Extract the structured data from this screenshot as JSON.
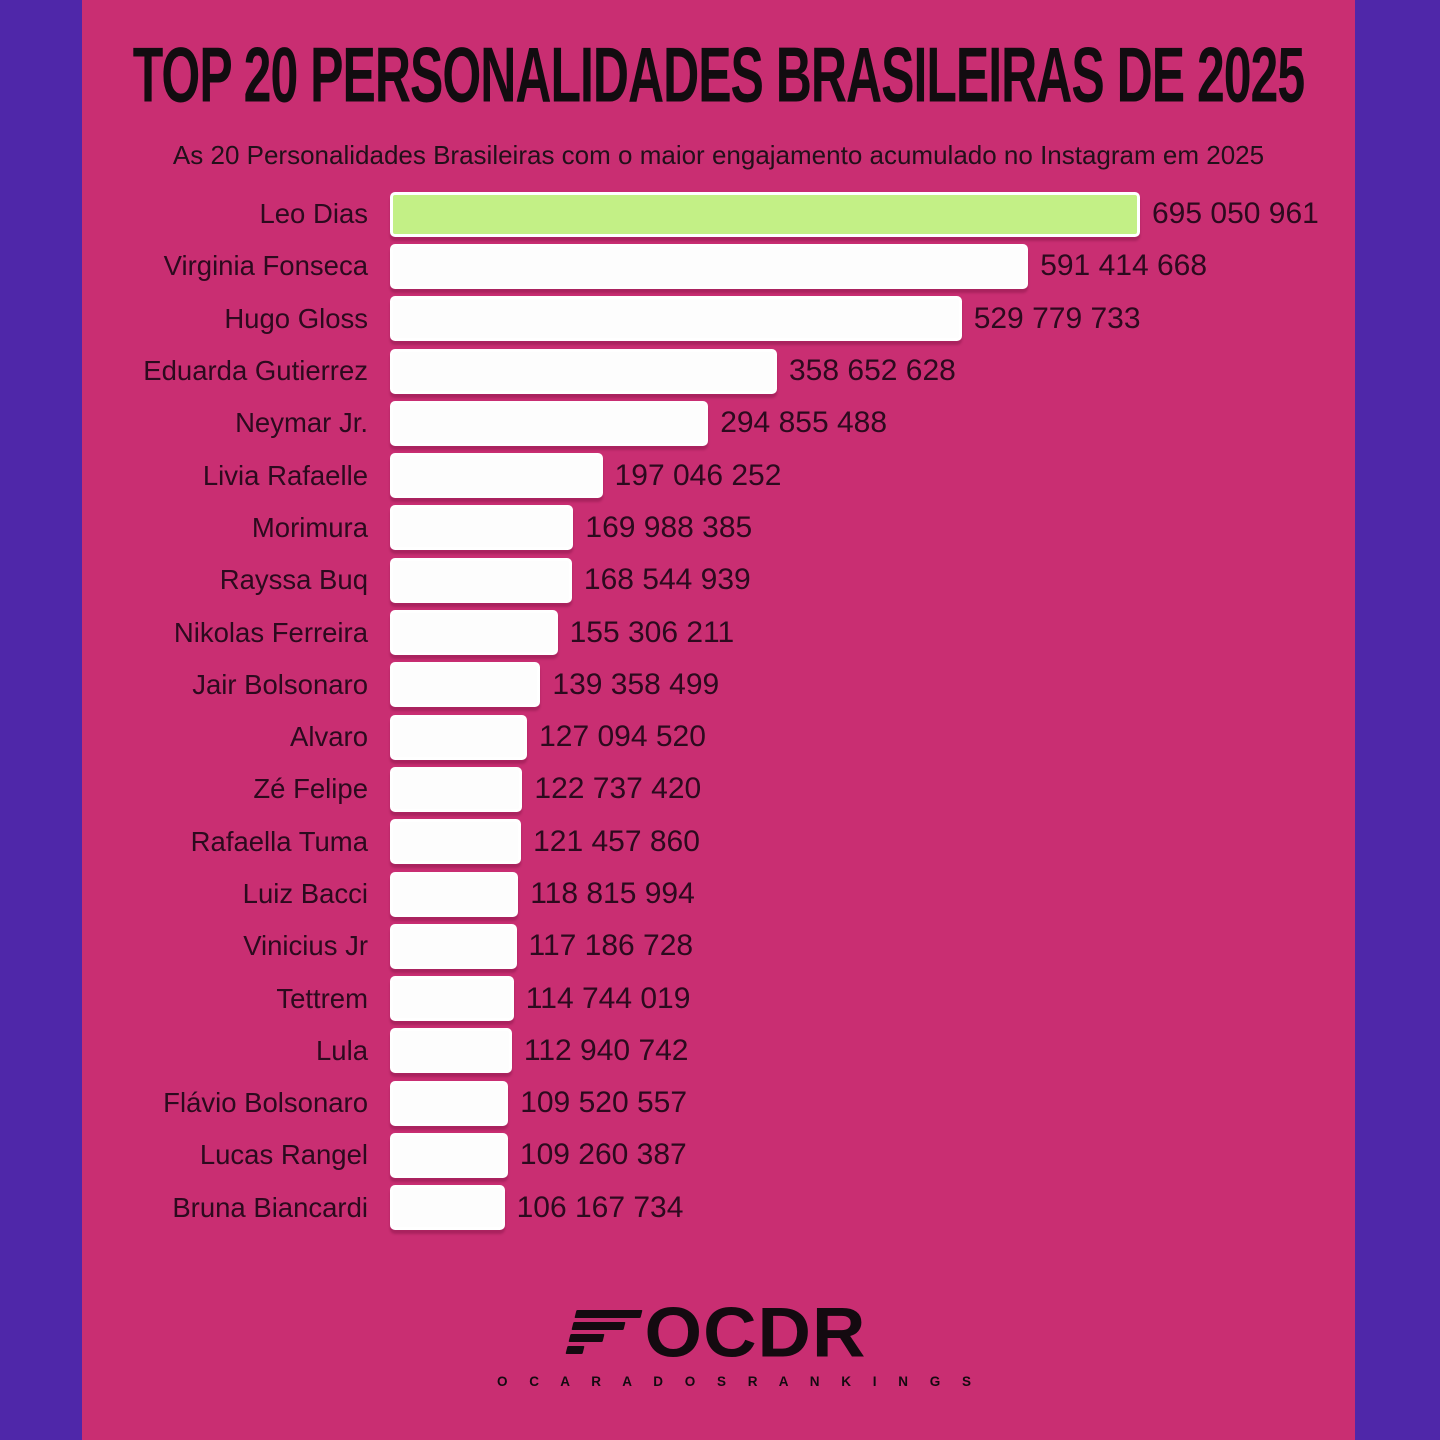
{
  "header": {
    "title": "TOP 20 PERSONALIDADES BRASILEIRAS DE 2025",
    "subtitle": "As 20 Personalidades Brasileiras com o maior engajamento acumulado no Instagram em 2025"
  },
  "chart_data": {
    "type": "bar",
    "orientation": "horizontal",
    "title": "TOP 20 PERSONALIDADES BRASILEIRAS DE 2025",
    "subtitle": "As 20 Personalidades Brasileiras com o maior engajamento acumulado no Instagram em 2025",
    "categories": [
      "Leo Dias",
      "Virginia Fonseca",
      "Hugo Gloss",
      "Eduarda Gutierrez",
      "Neymar Jr.",
      "Livia Rafaelle",
      "Morimura",
      "Rayssa Buq",
      "Nikolas Ferreira",
      "Jair Bolsonaro",
      "Alvaro",
      "Zé Felipe",
      "Rafaella Tuma",
      "Luiz Bacci",
      "Vinicius Jr",
      "Tettrem",
      "Lula",
      "Flávio Bolsonaro",
      "Lucas Rangel",
      "Bruna Biancardi"
    ],
    "values": [
      695050961,
      591414668,
      529779733,
      358652628,
      294855488,
      197046252,
      169988385,
      168544939,
      155306211,
      139358499,
      127094520,
      122737420,
      121457860,
      118815994,
      117186728,
      114744019,
      112940742,
      109520557,
      109260387,
      106167734
    ],
    "value_labels": [
      "695 050 961",
      "591 414 668",
      "529 779 733",
      "358 652 628",
      "294 855 488",
      "197 046 252",
      "169 988 385",
      "168 544 939",
      "155 306 211",
      "139 358 499",
      "127 094 520",
      "122 737 420",
      "121 457 860",
      "118 815 994",
      "117 186 728",
      "114 744 019",
      "112 940 742",
      "109 520 557",
      "109 260 387",
      "106 167 734"
    ],
    "highlight_index": 0,
    "xlim": [
      0,
      695050961
    ],
    "grid": false,
    "legend": "none",
    "colors": {
      "background": "#c92e72",
      "side_border": "#4f27a9",
      "bar_default": "#fdfdfd",
      "bar_highlight": "#c3f086",
      "text": "#2c0a1e",
      "title": "#120c10"
    }
  },
  "footer": {
    "logo_text": "OCDR",
    "logo_subtext": "O C A R A D O S R A N K I N G S"
  }
}
